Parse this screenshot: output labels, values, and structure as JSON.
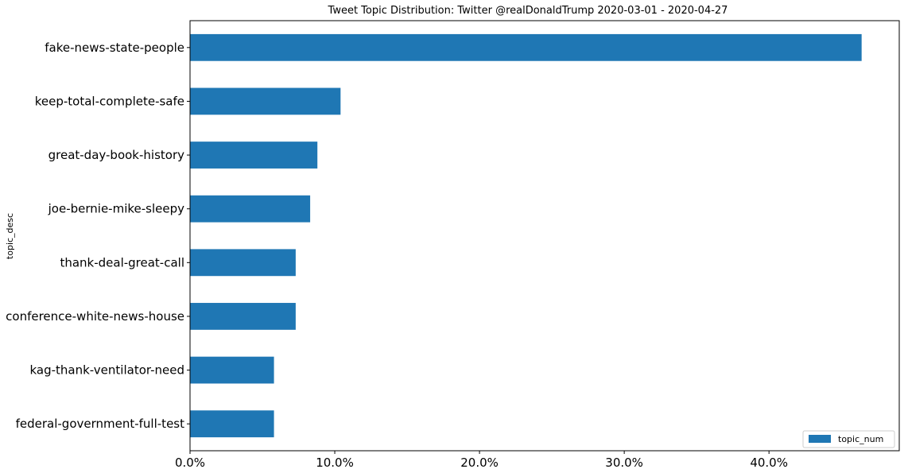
{
  "chart_data": {
    "type": "bar",
    "orientation": "horizontal",
    "title": "Tweet Topic Distribution: Twitter @realDonaldTrump 2020-03-01 - 2020-04-27",
    "xlabel": "",
    "ylabel": "topic_desc",
    "categories": [
      "fake-news-state-people",
      "keep-total-complete-safe",
      "great-day-book-history",
      "joe-bernie-mike-sleepy",
      "thank-deal-great-call",
      "conference-white-news-house",
      "kag-thank-ventilator-need",
      "federal-government-full-test"
    ],
    "series": [
      {
        "name": "topic_num",
        "color": "#1f77b4",
        "values": [
          0.464,
          0.104,
          0.088,
          0.083,
          0.073,
          0.073,
          0.058,
          0.058
        ]
      }
    ],
    "xlim": [
      0,
      0.49
    ],
    "xticks": [
      0,
      0.1,
      0.2,
      0.3,
      0.4
    ],
    "xtick_labels": [
      "0.0%",
      "10.0%",
      "20.0%",
      "30.0%",
      "40.0%"
    ],
    "grid": false,
    "legend_position": "bottom-right"
  }
}
